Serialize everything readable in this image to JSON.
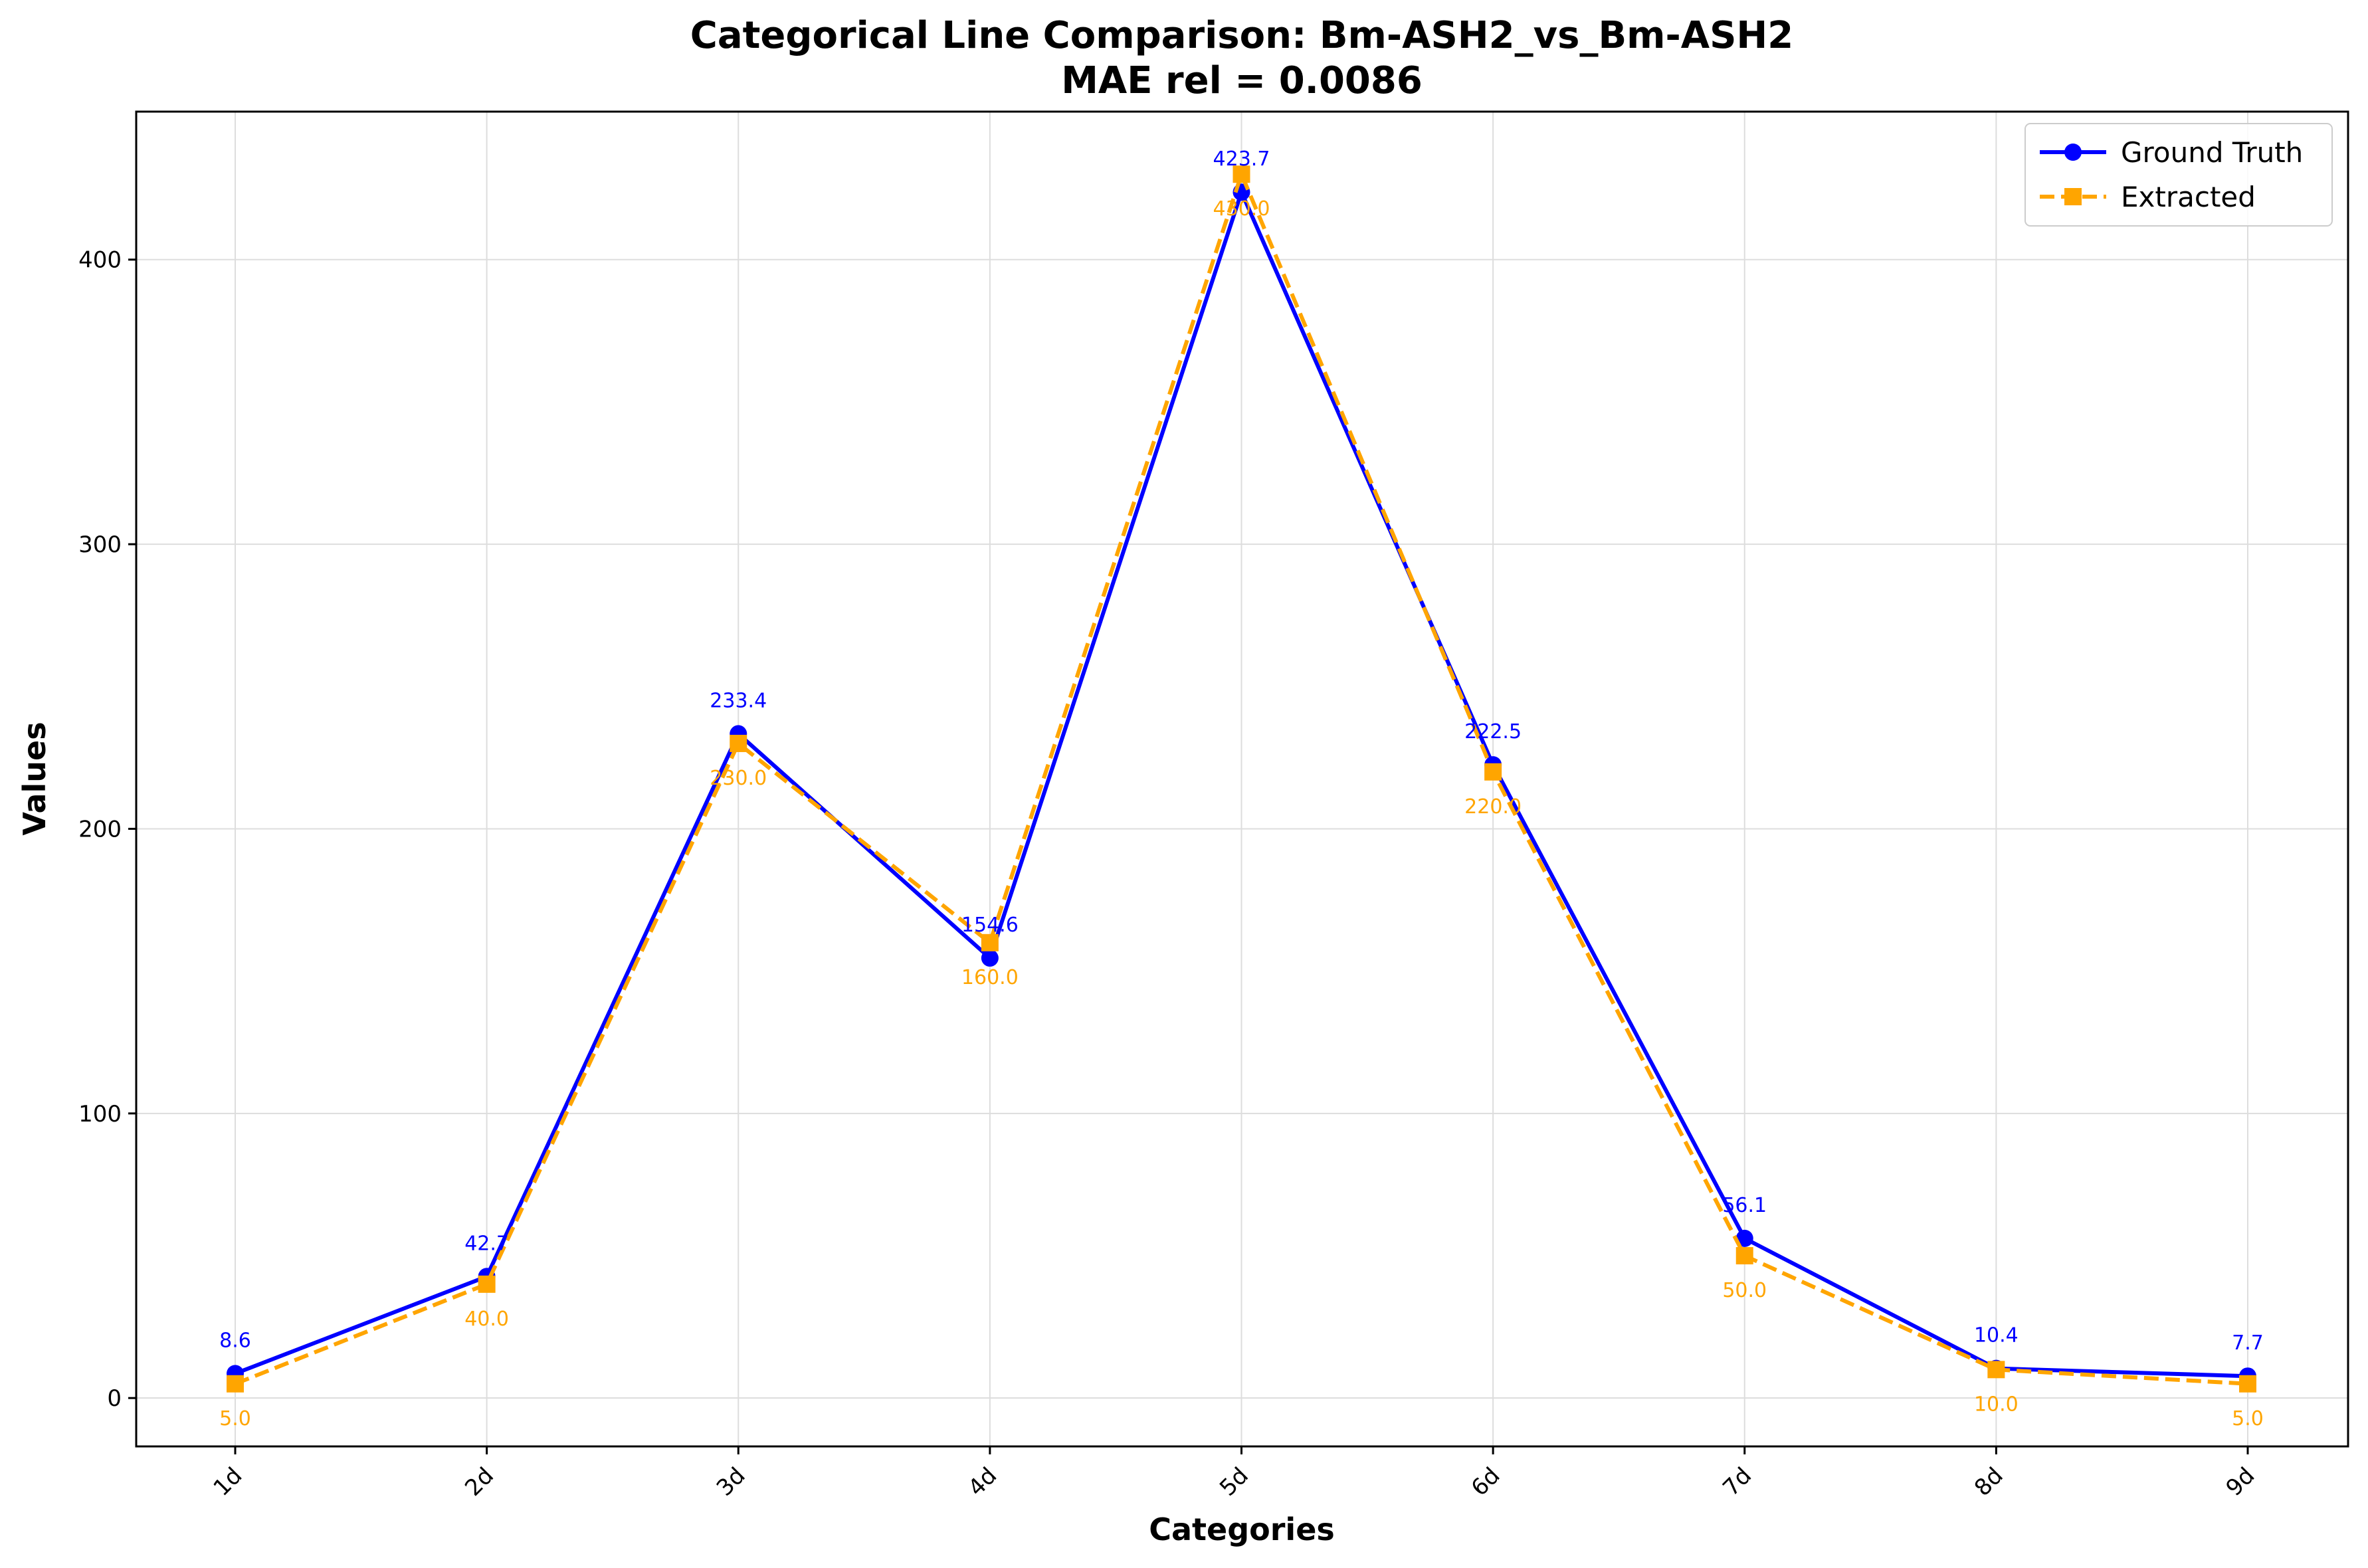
{
  "chart_data": {
    "type": "line",
    "title": "Categorical Line Comparison: Bm-ASH2_vs_Bm-ASH2",
    "subtitle": "MAE rel = 0.0086",
    "xlabel": "Categories",
    "ylabel": "Values",
    "categories": [
      "1d",
      "2d",
      "3d",
      "4d",
      "5d",
      "6d",
      "7d",
      "8d",
      "9d"
    ],
    "ylim": [
      -17,
      452
    ],
    "yticks": [
      0,
      100,
      200,
      300,
      400
    ],
    "grid": true,
    "legend_position": "top-right",
    "series": [
      {
        "name": "Ground Truth",
        "color": "#0000ff",
        "marker": "circle",
        "line_style": "solid",
        "values": [
          8.6,
          42.7,
          233.4,
          154.6,
          423.7,
          222.5,
          56.1,
          10.4,
          7.7
        ],
        "labels": [
          "8.6",
          "42.7",
          "233.4",
          "154.6",
          "423.7",
          "222.5",
          "56.1",
          "10.4",
          "7.7"
        ],
        "label_position": "above"
      },
      {
        "name": "Extracted",
        "color": "#ffa500",
        "marker": "square",
        "line_style": "dashed",
        "values": [
          5.0,
          40.0,
          230.0,
          160.0,
          430.0,
          220.0,
          50.0,
          10.0,
          5.0
        ],
        "labels": [
          "5.0",
          "40.0",
          "230.0",
          "160.0",
          "430.0",
          "220.0",
          "50.0",
          "10.0",
          "5.0"
        ],
        "label_position": "below"
      }
    ]
  }
}
